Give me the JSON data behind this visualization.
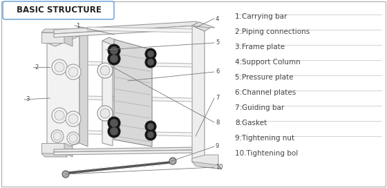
{
  "title": "BASIC STRUCTURE",
  "bg_color": "#f5f5f5",
  "border_color": "#5b9bd5",
  "legend_items": [
    "1.Carrying bar",
    "2.Piping connections",
    "3.Frame plate",
    "4.Support Column",
    "5.Pressure plate",
    "6.Channel plates",
    "7.Guiding bar",
    "8.Gasket",
    "9.Tightening nut",
    "10.Tightening bol"
  ],
  "line_color": "#888888",
  "text_color": "#333333",
  "divider_color": "#cccccc",
  "face_light": "#efefef",
  "face_mid": "#e0e0e0",
  "face_dark": "#d0d0d0"
}
